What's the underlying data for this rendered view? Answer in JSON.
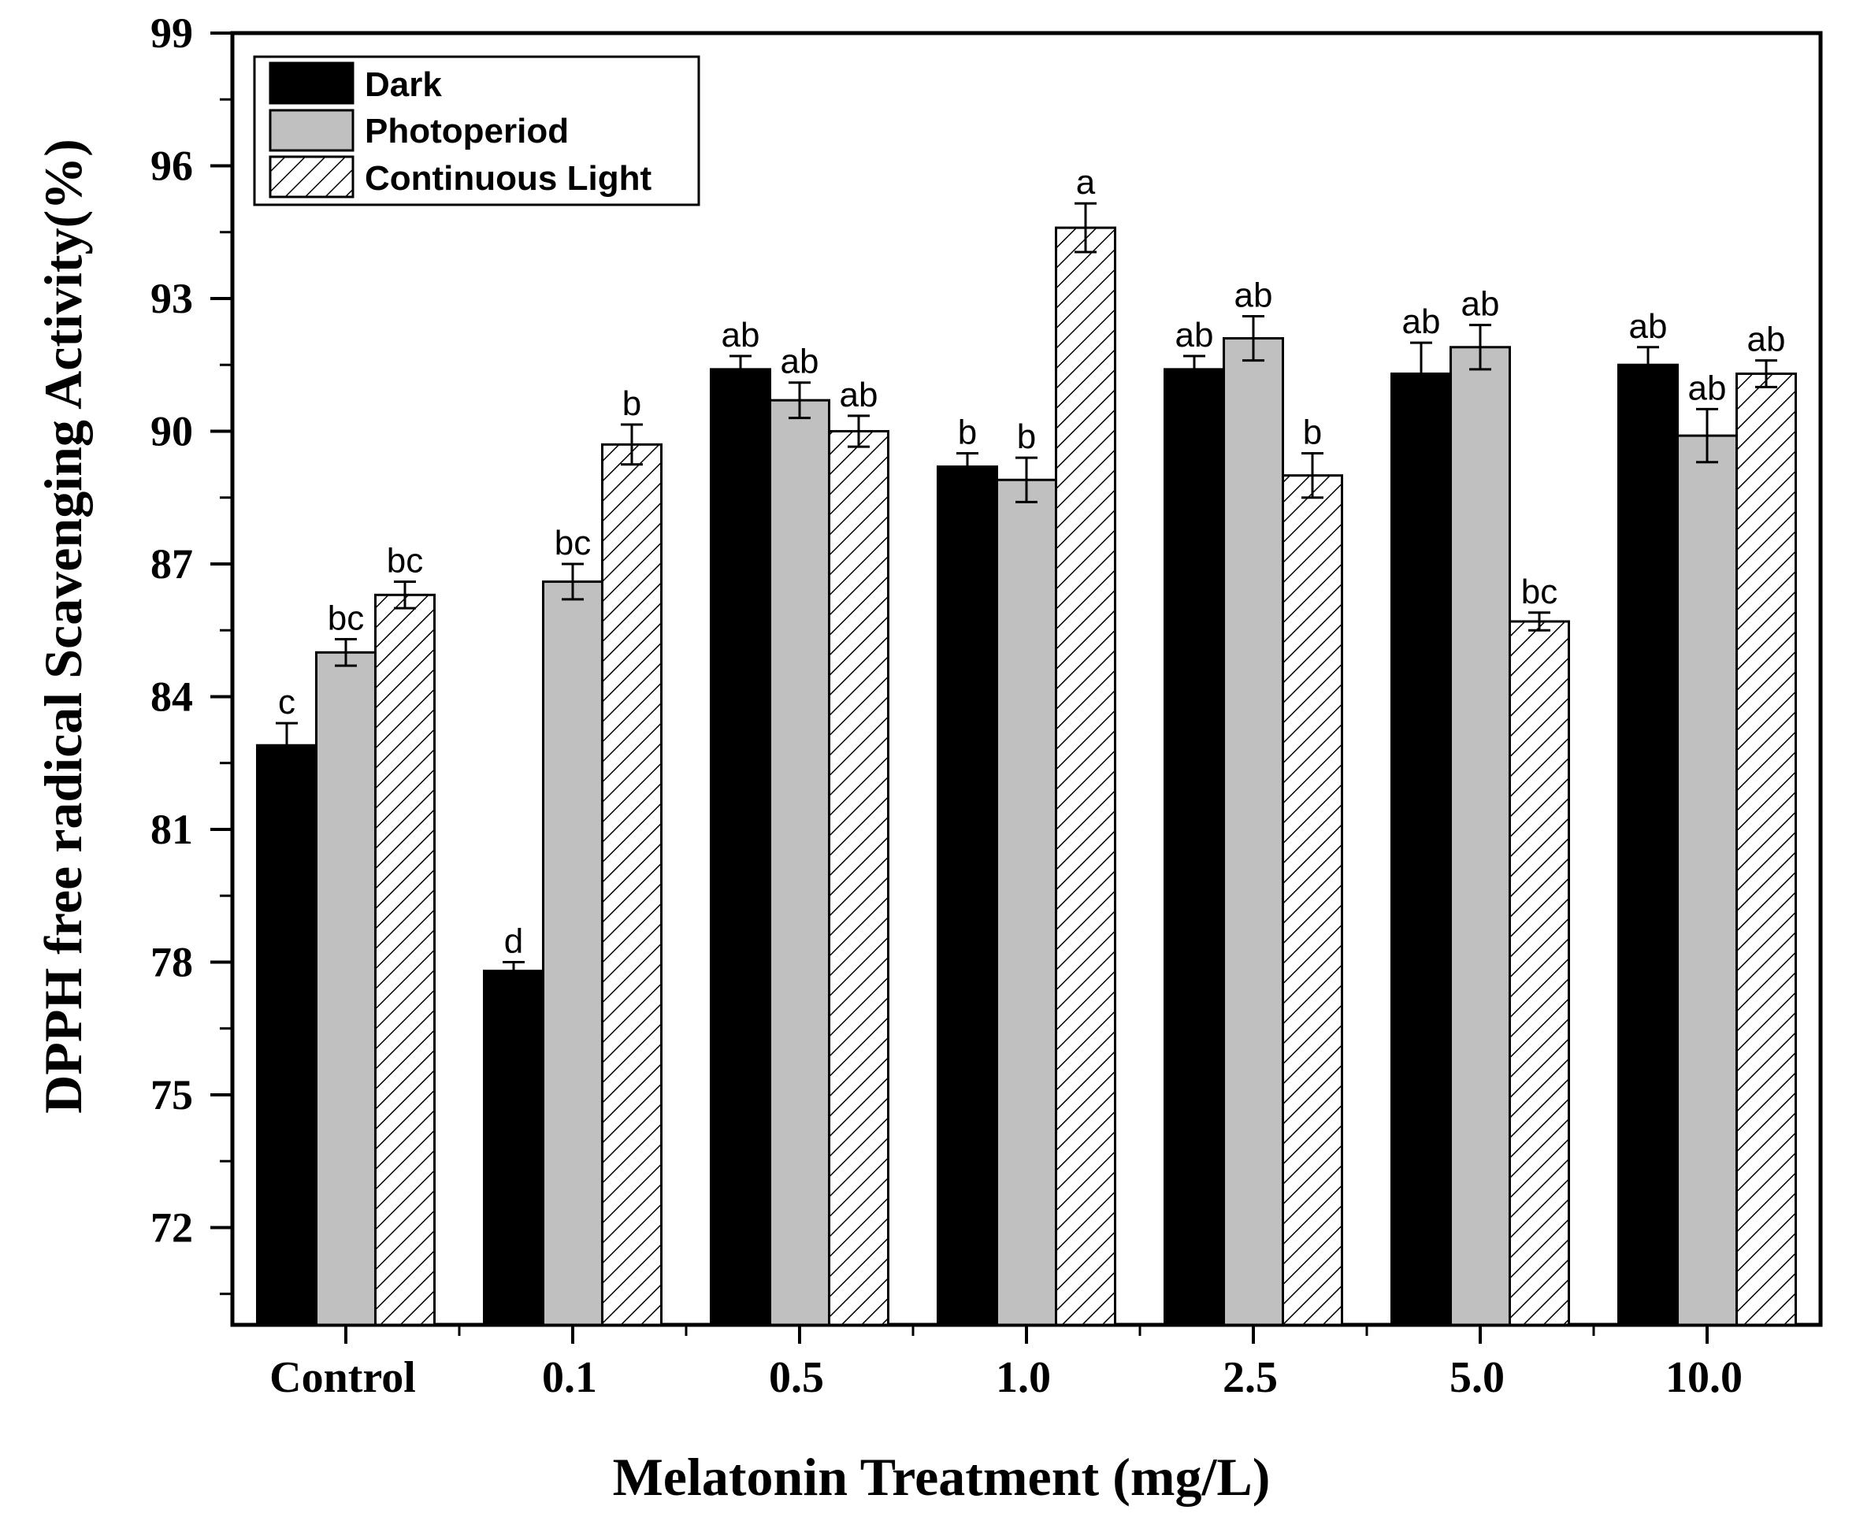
{
  "chart_data": {
    "type": "bar",
    "title": "",
    "xlabel": "Melatonin Treatment (mg/L)",
    "ylabel": "DPPH free radical Scavenging Activity(%)",
    "ylim": [
      69.8,
      99
    ],
    "yticks": [
      72,
      75,
      78,
      81,
      84,
      87,
      90,
      93,
      96,
      99
    ],
    "categories": [
      "Control",
      "0.1",
      "0.5",
      "1.0",
      "2.5",
      "5.0",
      "10.0"
    ],
    "legend_position": "top-left",
    "series": [
      {
        "name": "Dark",
        "fill": "#000000",
        "pattern": "solid",
        "values": [
          82.9,
          77.8,
          91.4,
          89.2,
          91.4,
          91.3,
          91.5
        ],
        "errors": [
          0.5,
          0.2,
          0.3,
          0.3,
          0.3,
          0.7,
          0.4
        ],
        "labels": [
          "c",
          "d",
          "ab",
          "b",
          "ab",
          "ab",
          "ab"
        ]
      },
      {
        "name": "Photoperiod",
        "fill": "#c0c0c0",
        "pattern": "solid",
        "values": [
          85.0,
          86.6,
          90.7,
          88.9,
          92.1,
          91.9,
          89.9
        ],
        "errors": [
          0.3,
          0.4,
          0.4,
          0.5,
          0.5,
          0.5,
          0.6
        ],
        "labels": [
          "bc",
          "bc",
          "ab",
          "b",
          "ab",
          "ab",
          "ab"
        ]
      },
      {
        "name": "Continuous Light",
        "fill": "#ffffff",
        "pattern": "hatch",
        "values": [
          86.3,
          89.7,
          90.0,
          94.6,
          89.0,
          85.7,
          91.3
        ],
        "errors": [
          0.3,
          0.45,
          0.35,
          0.55,
          0.5,
          0.2,
          0.3
        ],
        "labels": [
          "bc",
          "b",
          "ab",
          "a",
          "b",
          "bc",
          "ab"
        ]
      }
    ]
  }
}
